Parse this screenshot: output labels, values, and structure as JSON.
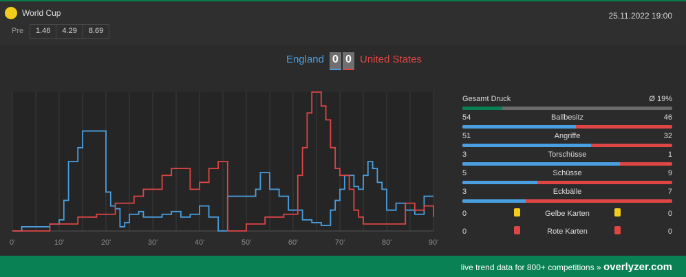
{
  "match": {
    "competition": "World Cup",
    "datetime": "25.11.2022 19:00",
    "pre_label": "Pre",
    "odds": [
      "1.46",
      "4.29",
      "8.69"
    ],
    "home": "England",
    "away": "United States",
    "score_home": "0",
    "score_away": "0"
  },
  "colors": {
    "home": "#4a9fe0",
    "away": "#e04545",
    "accent": "#0a8055",
    "competition_icon": "#f2cc1a"
  },
  "stats": {
    "pressure": {
      "label": "Gesamt Druck",
      "value": "Ø 19%",
      "fraction": 0.19
    },
    "rows": [
      {
        "label": "Ballbesitz",
        "home": "54",
        "away": "46"
      },
      {
        "label": "Angriffe",
        "home": "51",
        "away": "32"
      },
      {
        "label": "Torschüsse",
        "home": "3",
        "away": "1"
      },
      {
        "label": "Schüsse",
        "home": "5",
        "away": "9"
      },
      {
        "label": "Eckbälle",
        "home": "3",
        "away": "7"
      }
    ],
    "yellow": {
      "label": "Gelbe Karten",
      "home": "0",
      "away": "0"
    },
    "red": {
      "label": "Rote Karten",
      "home": "0",
      "away": "0"
    }
  },
  "chart_data": {
    "type": "line",
    "x_ticks": [
      "0'",
      "10'",
      "20'",
      "30'",
      "40'",
      "50'",
      "60'",
      "70'",
      "80'",
      "90'"
    ],
    "xlim": [
      0,
      90
    ],
    "ylim": [
      0,
      100
    ],
    "grid": true,
    "series": [
      {
        "name": "England",
        "x": [
          0,
          2,
          4,
          6,
          8,
          10,
          11,
          12,
          13,
          14,
          15,
          16,
          18,
          19,
          20,
          21,
          22,
          23,
          24,
          25,
          26,
          27,
          28,
          30,
          32,
          34,
          36,
          38,
          40,
          42,
          44,
          45,
          46,
          47,
          48,
          50,
          52,
          53,
          54,
          55,
          56,
          57,
          58,
          59,
          60,
          62,
          64,
          66,
          68,
          69,
          70,
          71,
          72,
          73,
          74,
          75,
          76,
          77,
          78,
          79,
          80,
          82,
          84,
          86,
          88,
          89,
          90
        ],
        "y": [
          0,
          3,
          3,
          3,
          5,
          8,
          22,
          50,
          50,
          60,
          72,
          72,
          72,
          72,
          28,
          18,
          16,
          3,
          6,
          12,
          12,
          14,
          10,
          10,
          12,
          14,
          10,
          12,
          18,
          10,
          0,
          0,
          25,
          25,
          25,
          25,
          30,
          42,
          42,
          30,
          30,
          25,
          25,
          15,
          15,
          8,
          6,
          4,
          15,
          22,
          30,
          40,
          40,
          32,
          30,
          40,
          50,
          45,
          35,
          30,
          15,
          20,
          15,
          12,
          25,
          25,
          25
        ]
      },
      {
        "name": "United States",
        "x": [
          0,
          2,
          4,
          6,
          8,
          10,
          12,
          14,
          16,
          18,
          20,
          22,
          24,
          26,
          28,
          30,
          32,
          34,
          36,
          38,
          40,
          42,
          44,
          45,
          46,
          48,
          50,
          52,
          54,
          56,
          58,
          60,
          61,
          62,
          63,
          64,
          65,
          66,
          67,
          68,
          69,
          70,
          71,
          72,
          73,
          74,
          75,
          76,
          78,
          80,
          82,
          84,
          86,
          88,
          89,
          90
        ],
        "y": [
          0,
          0,
          0,
          0,
          5,
          5,
          5,
          10,
          10,
          12,
          12,
          20,
          20,
          25,
          30,
          30,
          40,
          45,
          45,
          30,
          35,
          45,
          50,
          50,
          0,
          0,
          5,
          5,
          10,
          10,
          12,
          12,
          40,
          60,
          85,
          100,
          100,
          90,
          80,
          60,
          45,
          40,
          40,
          30,
          15,
          10,
          5,
          5,
          5,
          5,
          5,
          20,
          15,
          18,
          18,
          10
        ]
      }
    ]
  },
  "footer": {
    "text": "live trend data for 800+ competitions »",
    "brand": "overlyzer.com"
  }
}
